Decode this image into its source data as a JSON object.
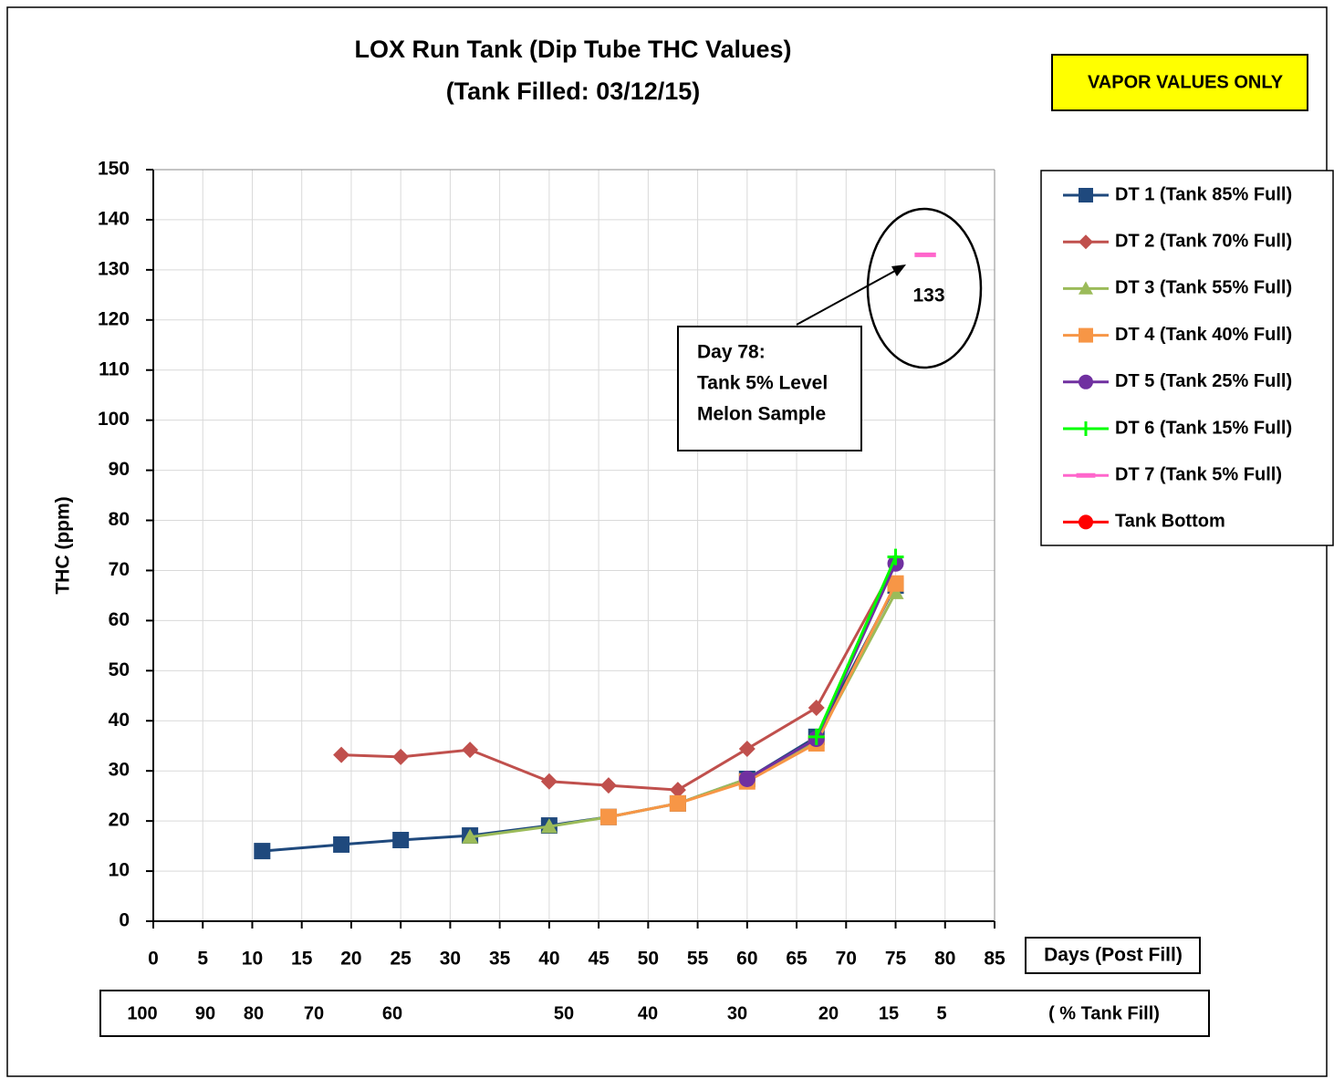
{
  "chart_data": {
    "type": "line",
    "title": [
      "LOX Run Tank (Dip Tube THC Values)",
      "(Tank  Filled: 03/12/15)"
    ],
    "badge": "VAPOR VALUES ONLY",
    "y_label": "THC (ppm)",
    "x_label": "Days (Post Fill)",
    "xlim": [
      0,
      85
    ],
    "xticks": [
      0,
      5,
      10,
      15,
      20,
      25,
      30,
      35,
      40,
      45,
      50,
      55,
      60,
      65,
      70,
      75,
      80,
      85
    ],
    "ylim": [
      0,
      150
    ],
    "yticks": [
      0,
      10,
      20,
      30,
      40,
      50,
      60,
      70,
      80,
      90,
      100,
      110,
      120,
      130,
      140,
      150
    ],
    "grid": true,
    "legend": "right",
    "tank_fill_label": "( % Tank Fill)",
    "tank_fill_values": [
      100,
      90,
      80,
      70,
      60,
      50,
      40,
      30,
      20,
      15,
      5
    ],
    "annotations": [
      {
        "text": [
          "Day 78:",
          "Tank 5% Level",
          "Melon Sample"
        ]
      },
      {
        "text": "133"
      }
    ],
    "series": [
      {
        "name": "DT 1 (Tank 85% Full)",
        "color": "#1f497d",
        "marker": "square",
        "x": [
          11,
          19,
          25,
          32,
          40,
          46,
          53,
          60,
          67,
          75
        ],
        "values": [
          14,
          15.3,
          16.2,
          17.1,
          19.1,
          20.8,
          23.5,
          28.4,
          36.8,
          67
        ]
      },
      {
        "name": "DT 2 (Tank 70% Full)",
        "color": "#c0504d",
        "marker": "diamond",
        "x": [
          19,
          25,
          32,
          40,
          46,
          53,
          60,
          67,
          75
        ],
        "values": [
          33.2,
          32.8,
          34.2,
          27.9,
          27.1,
          26.2,
          34.4,
          42.6,
          71.4
        ]
      },
      {
        "name": "DT 3 (Tank 55% Full)",
        "color": "#9bbb59",
        "marker": "triangle",
        "x": [
          32,
          40,
          46,
          53,
          60,
          67,
          75
        ],
        "values": [
          16.8,
          18.9,
          20.8,
          23.5,
          28.4,
          36,
          65.6
        ]
      },
      {
        "name": "DT 4 (Tank 40% Full)",
        "color": "#f79646",
        "marker": "square",
        "x": [
          46,
          53,
          60,
          67,
          75
        ],
        "values": [
          20.8,
          23.5,
          27.9,
          35.5,
          67.4
        ]
      },
      {
        "name": "DT 5 (Tank 25% Full)",
        "color": "#7030a0",
        "marker": "circle",
        "x": [
          60,
          67,
          75
        ],
        "values": [
          28.4,
          36.4,
          71.4
        ]
      },
      {
        "name": "DT 6 (Tank 15% Full)",
        "color": "#00ff00",
        "marker": "plus",
        "x": [
          67,
          75
        ],
        "values": [
          36.8,
          72.7
        ]
      },
      {
        "name": "DT 7 (Tank 5% Full)",
        "color": "#ff66cc",
        "marker": "dash",
        "x": [
          78
        ],
        "values": [
          133
        ]
      },
      {
        "name": "Tank Bottom",
        "color": "#ff0000",
        "marker": "circle",
        "x": [],
        "values": []
      }
    ]
  }
}
